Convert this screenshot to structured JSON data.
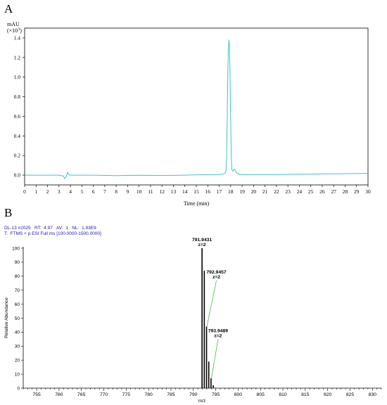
{
  "panel_a": {
    "letter": "A",
    "unit_line1": "mAU",
    "unit_line2_prefix": "(×10",
    "unit_line2_exp": "3",
    "unit_line2_suffix": ")",
    "xlabel": "Time (min)"
  },
  "panel_b": {
    "letter": "B",
    "header_line1": "DL-13 #2025   RT:  4.97   AV:  1   NL:  1.93E9",
    "header_line2": "T:  FTMS + p ESI Full ms [100.0000-1500.0000]",
    "ylabel": "Relative Abundance",
    "xlabel": "m/z"
  },
  "colors": {
    "trace": "#3ec4c9",
    "axis": "#000000",
    "header": "#1a1aa6",
    "annotation_line": "#3aa83a"
  },
  "chart_data": [
    {
      "type": "line",
      "title": "",
      "xlabel": "Time (min)",
      "ylabel": "mAU (×10³)",
      "xlim": [
        0,
        30
      ],
      "ylim": [
        -0.1,
        1.5
      ],
      "x_ticks": [
        0,
        1,
        2,
        3,
        4,
        5,
        6,
        7,
        8,
        9,
        10,
        11,
        12,
        13,
        14,
        15,
        16,
        17,
        18,
        19,
        20,
        21,
        22,
        23,
        24,
        25,
        26,
        27,
        28,
        29,
        30
      ],
      "y_ticks": [
        0.0,
        0.2,
        0.4,
        0.6,
        0.8,
        1.0,
        1.2,
        1.4
      ],
      "y_tick_labels": [
        "0.0",
        "0.2",
        "0.4",
        "0.6",
        "0.8",
        "1.0",
        "1.2",
        "1.4"
      ],
      "grid": false,
      "x": [
        0,
        1,
        2,
        3,
        3.4,
        3.5,
        3.65,
        3.75,
        3.85,
        4.0,
        5,
        6,
        8,
        10,
        12,
        14,
        15,
        16,
        16.5,
        17,
        17.3,
        17.5,
        17.6,
        17.65,
        17.7,
        17.75,
        17.8,
        17.85,
        17.9,
        17.95,
        18.0,
        18.05,
        18.1,
        18.2,
        18.3,
        18.4,
        18.5,
        18.6,
        18.8,
        19.0,
        19.5,
        20,
        22,
        24,
        26,
        28,
        30
      ],
      "y": [
        0.0,
        0.0,
        0.0,
        0.0,
        -0.01,
        -0.035,
        -0.01,
        0.03,
        0.005,
        0.0,
        0.0,
        0.0,
        -0.005,
        -0.002,
        -0.004,
        0.0,
        0.003,
        0.004,
        0.005,
        0.007,
        0.01,
        0.02,
        0.05,
        0.2,
        0.55,
        1.0,
        1.28,
        1.38,
        1.3,
        1.0,
        0.6,
        0.2,
        0.06,
        0.04,
        0.06,
        0.05,
        0.03,
        0.015,
        0.008,
        0.005,
        0.004,
        0.005,
        0.007,
        0.01,
        0.012,
        0.015,
        0.018
      ]
    },
    {
      "type": "bar",
      "title": "",
      "xlabel": "m/z",
      "ylabel": "Relative Abundance",
      "xlim": [
        752,
        832
      ],
      "ylim": [
        0,
        100
      ],
      "x_ticks": [
        755,
        760,
        765,
        770,
        775,
        780,
        785,
        790,
        795,
        800,
        805,
        810,
        815,
        820,
        825,
        830
      ],
      "y_ticks": [
        0,
        10,
        20,
        30,
        40,
        50,
        60,
        70,
        80,
        90,
        100
      ],
      "grid": false,
      "x": [
        791.9431,
        792.4442,
        792.9457,
        793.4468,
        793.9489,
        794.45
      ],
      "values": [
        100,
        84,
        44,
        19,
        7,
        2
      ],
      "peak_labels": [
        {
          "mz": 791.9431,
          "value": 100,
          "label": "791.9431",
          "charge": "z=2"
        },
        {
          "mz": 792.9457,
          "value": 44,
          "label": "792.9457",
          "charge": "z=2"
        },
        {
          "mz": 793.9489,
          "value": 7,
          "label": "793.9489",
          "charge": "z=2"
        }
      ]
    }
  ]
}
